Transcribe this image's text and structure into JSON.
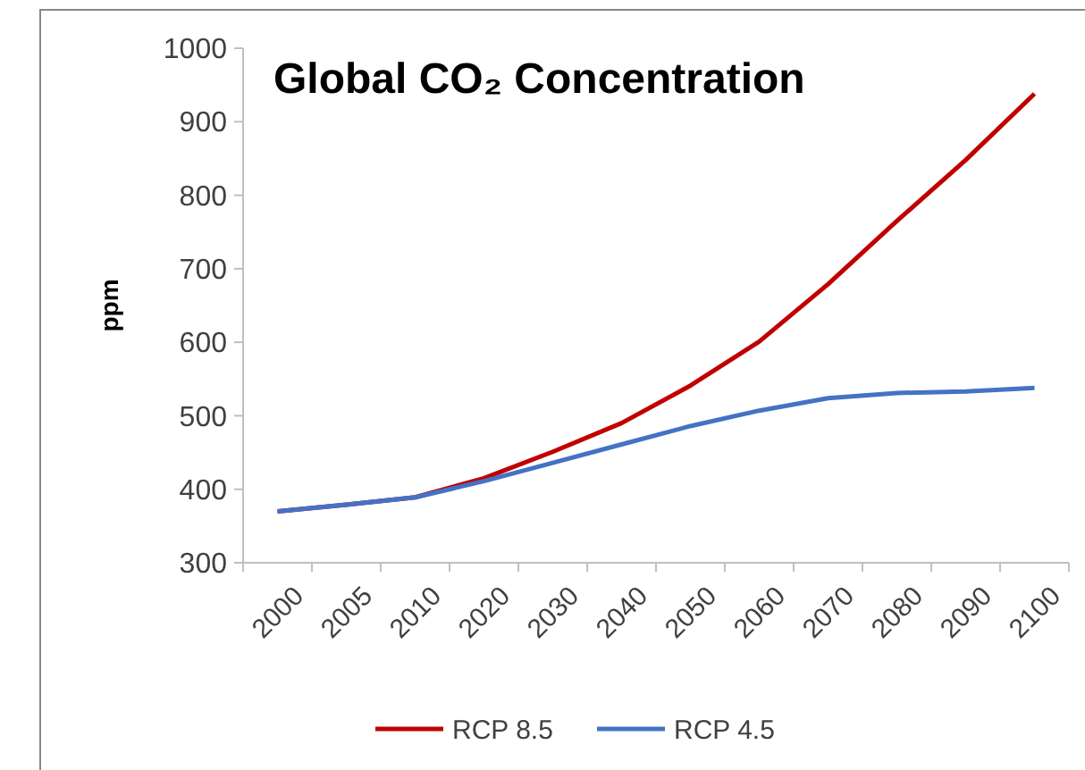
{
  "chart_data": {
    "type": "line",
    "title": "Global CO₂ Concentration",
    "ylabel": "ppm",
    "categories": [
      "2000",
      "2005",
      "2010",
      "2020",
      "2030",
      "2040",
      "2050",
      "2060",
      "2070",
      "2080",
      "2090",
      "2100"
    ],
    "series": [
      {
        "name": "RCP 8.5",
        "color": "#c00000",
        "values": [
          370,
          379,
          389,
          415,
          451,
          490,
          541,
          601,
          679,
          765,
          848,
          938
        ]
      },
      {
        "name": "RCP 4.5",
        "color": "#4472c4",
        "values": [
          370,
          379,
          389,
          411,
          436,
          461,
          486,
          507,
          524,
          531,
          533,
          538
        ]
      }
    ],
    "ylim": [
      300,
      1000
    ],
    "yticks": [
      300,
      400,
      500,
      600,
      700,
      800,
      900,
      1000
    ],
    "grid": false,
    "legend": "bottom",
    "marker": "none",
    "line_style": "solid"
  }
}
